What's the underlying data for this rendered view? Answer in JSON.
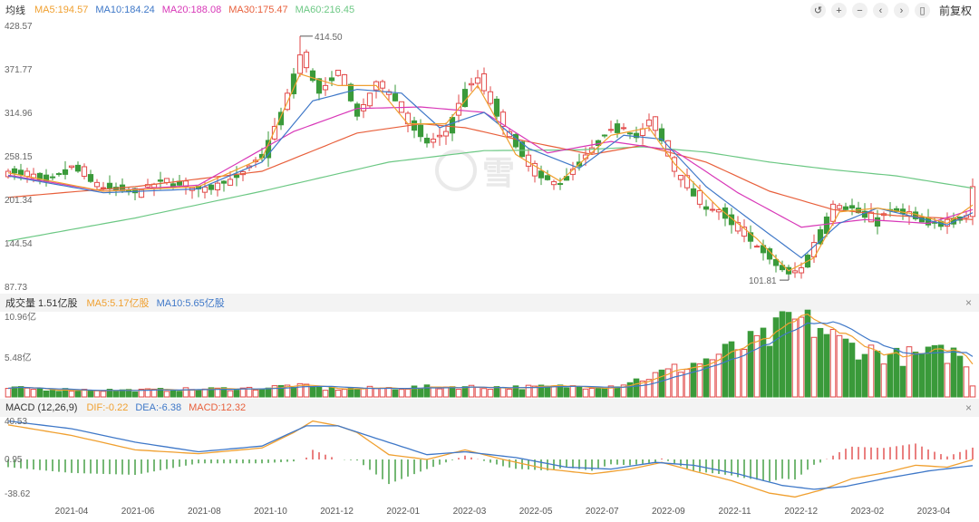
{
  "ma_legend": {
    "title": "均线",
    "items": [
      {
        "label": "MA5:194.57",
        "color": "#f0a030"
      },
      {
        "label": "MA10:184.24",
        "color": "#3f78c8"
      },
      {
        "label": "MA20:188.08",
        "color": "#d838b8"
      },
      {
        "label": "MA30:175.47",
        "color": "#e8603c"
      },
      {
        "label": "MA60:216.45",
        "color": "#6cc884"
      }
    ]
  },
  "toolbar": {
    "undo_icon": "↺",
    "zoom_in_icon": "+",
    "zoom_out_icon": "−",
    "prev_icon": "‹",
    "next_icon": "›",
    "lock_icon": "▯",
    "adjust_label": "前复权"
  },
  "volume_legend": {
    "title": "成交量 1.51亿股",
    "items": [
      {
        "label": "MA5:5.17亿股",
        "color": "#f0a030"
      },
      {
        "label": "MA10:5.65亿股",
        "color": "#3f78c8"
      }
    ]
  },
  "macd_legend": {
    "title": "MACD (12,26,9)",
    "items": [
      {
        "label": "DIF:-0.22",
        "color": "#f0a030"
      },
      {
        "label": "DEA:-6.38",
        "color": "#3f78c8"
      },
      {
        "label": "MACD:12.32",
        "color": "#e8603c"
      }
    ]
  },
  "close_icon": "×",
  "watermark_text": "雪",
  "colors": {
    "up": "#e24a4a",
    "down": "#3a9a3a"
  },
  "chart_data": {
    "type": "candlestick",
    "price_axis": {
      "ticks": [
        "428.57",
        "371.77",
        "314.96",
        "258.15",
        "201.34",
        "144.54",
        "87.73"
      ],
      "ylim": [
        87.73,
        428.57
      ]
    },
    "volume_axis": {
      "ticks": [
        "10.96亿",
        "5.48亿"
      ],
      "ylim": [
        0,
        10.96
      ]
    },
    "macd_axis": {
      "ticks": [
        "40.53",
        "0.95",
        "-38.62"
      ],
      "ylim": [
        -38.62,
        40.53
      ]
    },
    "x_labels": [
      "2021-04",
      "2021-06",
      "2021-08",
      "2021-10",
      "2021-12",
      "2022-01",
      "2022-03",
      "2022-05",
      "2022-07",
      "2022-09",
      "2022-11",
      "2022-12",
      "2023-02",
      "2023-04"
    ],
    "annotations": [
      {
        "label": "414.50",
        "value": 414.5,
        "candle_index": 46
      },
      {
        "label": "101.81",
        "value": 101.81,
        "candle_index": 123
      }
    ],
    "close_anchors": [
      [
        0,
        238
      ],
      [
        6,
        225
      ],
      [
        10,
        245
      ],
      [
        14,
        218
      ],
      [
        20,
        210
      ],
      [
        24,
        225
      ],
      [
        30,
        215
      ],
      [
        36,
        230
      ],
      [
        40,
        260
      ],
      [
        43,
        315
      ],
      [
        46,
        390
      ],
      [
        49,
        340
      ],
      [
        52,
        370
      ],
      [
        55,
        310
      ],
      [
        58,
        355
      ],
      [
        61,
        330
      ],
      [
        63,
        300
      ],
      [
        66,
        275
      ],
      [
        69,
        290
      ],
      [
        72,
        345
      ],
      [
        74,
        360
      ],
      [
        77,
        310
      ],
      [
        80,
        270
      ],
      [
        83,
        232
      ],
      [
        87,
        222
      ],
      [
        90,
        250
      ],
      [
        93,
        278
      ],
      [
        96,
        300
      ],
      [
        99,
        282
      ],
      [
        101,
        305
      ],
      [
        103,
        278
      ],
      [
        105,
        238
      ],
      [
        109,
        195
      ],
      [
        112,
        185
      ],
      [
        115,
        160
      ],
      [
        118,
        140
      ],
      [
        121,
        115
      ],
      [
        123,
        104
      ],
      [
        125,
        112
      ],
      [
        127,
        145
      ],
      [
        130,
        195
      ],
      [
        133,
        190
      ],
      [
        136,
        172
      ],
      [
        139,
        188
      ],
      [
        142,
        180
      ],
      [
        145,
        168
      ],
      [
        148,
        175
      ],
      [
        151,
        180
      ],
      [
        152,
        218
      ]
    ],
    "volume_anchors": [
      [
        0,
        1.2
      ],
      [
        8,
        1.0
      ],
      [
        20,
        0.9
      ],
      [
        40,
        1.2
      ],
      [
        45,
        1.6
      ],
      [
        50,
        1.1
      ],
      [
        60,
        1.2
      ],
      [
        70,
        1.4
      ],
      [
        80,
        1.3
      ],
      [
        95,
        1.5
      ],
      [
        100,
        2.5
      ],
      [
        105,
        3.8
      ],
      [
        110,
        5.0
      ],
      [
        115,
        6.8
      ],
      [
        120,
        8.0
      ],
      [
        123,
        10.5
      ],
      [
        125,
        10.2
      ],
      [
        128,
        9.5
      ],
      [
        131,
        7.5
      ],
      [
        135,
        6.5
      ],
      [
        140,
        5.5
      ],
      [
        145,
        5.8
      ],
      [
        150,
        6.0
      ],
      [
        152,
        1.51
      ]
    ],
    "dif_anchors": [
      [
        0,
        36
      ],
      [
        10,
        25
      ],
      [
        20,
        10
      ],
      [
        30,
        6
      ],
      [
        40,
        12
      ],
      [
        45,
        28
      ],
      [
        48,
        40
      ],
      [
        52,
        35
      ],
      [
        55,
        28
      ],
      [
        60,
        5
      ],
      [
        66,
        0
      ],
      [
        72,
        10
      ],
      [
        78,
        0
      ],
      [
        85,
        -10
      ],
      [
        92,
        -15
      ],
      [
        98,
        -10
      ],
      [
        103,
        -3
      ],
      [
        108,
        -12
      ],
      [
        114,
        -22
      ],
      [
        120,
        -35
      ],
      [
        124,
        -39
      ],
      [
        128,
        -32
      ],
      [
        133,
        -20
      ],
      [
        138,
        -14
      ],
      [
        143,
        -6
      ],
      [
        148,
        -8
      ],
      [
        152,
        -0.22
      ]
    ],
    "dea_anchors": [
      [
        0,
        40
      ],
      [
        10,
        32
      ],
      [
        20,
        18
      ],
      [
        30,
        8
      ],
      [
        40,
        14
      ],
      [
        47,
        35
      ],
      [
        52,
        35
      ],
      [
        58,
        22
      ],
      [
        66,
        5
      ],
      [
        72,
        8
      ],
      [
        80,
        2
      ],
      [
        88,
        -8
      ],
      [
        95,
        -10
      ],
      [
        102,
        -3
      ],
      [
        108,
        -6
      ],
      [
        115,
        -15
      ],
      [
        122,
        -27
      ],
      [
        127,
        -31
      ],
      [
        132,
        -28
      ],
      [
        138,
        -20
      ],
      [
        145,
        -12
      ],
      [
        152,
        -6.38
      ]
    ],
    "series": [
      {
        "name": "MA5",
        "value": 194.57
      },
      {
        "name": "MA10",
        "value": 184.24
      },
      {
        "name": "MA20",
        "value": 188.08
      },
      {
        "name": "MA30",
        "value": 175.47
      },
      {
        "name": "MA60",
        "value": 216.45
      }
    ],
    "ma_anchors": {
      "MA60": [
        [
          0,
          147
        ],
        [
          20,
          177
        ],
        [
          40,
          212
        ],
        [
          60,
          250
        ],
        [
          75,
          265
        ],
        [
          90,
          266
        ],
        [
          100,
          270
        ],
        [
          110,
          263
        ],
        [
          120,
          250
        ],
        [
          130,
          240
        ],
        [
          140,
          232
        ],
        [
          152,
          216
        ]
      ],
      "MA30": [
        [
          0,
          204
        ],
        [
          20,
          218
        ],
        [
          40,
          238
        ],
        [
          55,
          288
        ],
        [
          65,
          300
        ],
        [
          72,
          295
        ],
        [
          80,
          280
        ],
        [
          92,
          260
        ],
        [
          100,
          272
        ],
        [
          110,
          250
        ],
        [
          120,
          212
        ],
        [
          130,
          188
        ],
        [
          140,
          180
        ],
        [
          152,
          175
        ]
      ],
      "MA20": [
        [
          0,
          233
        ],
        [
          15,
          212
        ],
        [
          30,
          220
        ],
        [
          45,
          290
        ],
        [
          55,
          320
        ],
        [
          65,
          322
        ],
        [
          75,
          315
        ],
        [
          85,
          262
        ],
        [
          95,
          277
        ],
        [
          105,
          265
        ],
        [
          115,
          210
        ],
        [
          125,
          165
        ],
        [
          135,
          175
        ],
        [
          145,
          170
        ],
        [
          152,
          188
        ]
      ],
      "MA10": [
        [
          0,
          232
        ],
        [
          15,
          210
        ],
        [
          30,
          215
        ],
        [
          40,
          250
        ],
        [
          48,
          330
        ],
        [
          55,
          345
        ],
        [
          62,
          340
        ],
        [
          68,
          295
        ],
        [
          75,
          315
        ],
        [
          82,
          268
        ],
        [
          90,
          242
        ],
        [
          97,
          285
        ],
        [
          103,
          280
        ],
        [
          110,
          218
        ],
        [
          118,
          168
        ],
        [
          125,
          125
        ],
        [
          131,
          170
        ],
        [
          137,
          190
        ],
        [
          143,
          178
        ],
        [
          148,
          168
        ],
        [
          152,
          184
        ]
      ],
      "MA5": [
        [
          0,
          236
        ],
        [
          15,
          212
        ],
        [
          30,
          218
        ],
        [
          40,
          255
        ],
        [
          46,
          365
        ],
        [
          52,
          350
        ],
        [
          58,
          350
        ],
        [
          63,
          300
        ],
        [
          69,
          300
        ],
        [
          74,
          350
        ],
        [
          80,
          260
        ],
        [
          87,
          225
        ],
        [
          95,
          285
        ],
        [
          101,
          295
        ],
        [
          105,
          248
        ],
        [
          112,
          190
        ],
        [
          118,
          150
        ],
        [
          123,
          108
        ],
        [
          127,
          125
        ],
        [
          131,
          185
        ],
        [
          137,
          190
        ],
        [
          143,
          182
        ],
        [
          148,
          170
        ],
        [
          152,
          194
        ]
      ]
    }
  }
}
